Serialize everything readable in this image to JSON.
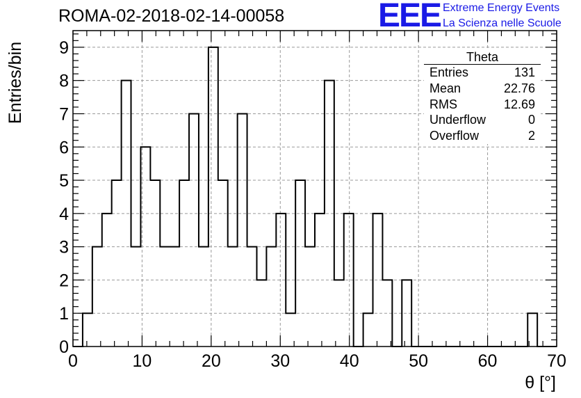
{
  "title": "ROMA-02-2018-02-14-00058",
  "logo": {
    "text": "EEE",
    "line1": "Extreme Energy Events",
    "line2": "La Scienza nelle Scuole",
    "color": "#1a1ae6"
  },
  "stats": {
    "title": "Theta",
    "rows": [
      {
        "label": "Entries",
        "value": "131"
      },
      {
        "label": "Mean",
        "value": "22.76"
      },
      {
        "label": "RMS",
        "value": "12.69"
      },
      {
        "label": "Underflow",
        "value": "0"
      },
      {
        "label": "Overflow",
        "value": "2"
      }
    ]
  },
  "chart_data": {
    "type": "bar",
    "style": "step-histogram",
    "xlabel": "θ [°]",
    "ylabel": "Entries/bin",
    "xlim": [
      0,
      70
    ],
    "ylim": [
      0,
      9.5
    ],
    "grid": true,
    "xticks": [
      0,
      10,
      20,
      30,
      40,
      50,
      60,
      70
    ],
    "yticks": [
      0,
      1,
      2,
      3,
      4,
      5,
      6,
      7,
      8,
      9
    ],
    "bin_width": 1.4,
    "bin_start": 0,
    "values": [
      0,
      1,
      3,
      4,
      5,
      8,
      3,
      6,
      5,
      3,
      3,
      5,
      7,
      3,
      9,
      5,
      3,
      7,
      3,
      2,
      3,
      4,
      1,
      5,
      3,
      4,
      8,
      2,
      4,
      0,
      1,
      4,
      2,
      0,
      2,
      0,
      0,
      0,
      0,
      0,
      0,
      0,
      0,
      0,
      0,
      0,
      0,
      1,
      0,
      0
    ]
  }
}
